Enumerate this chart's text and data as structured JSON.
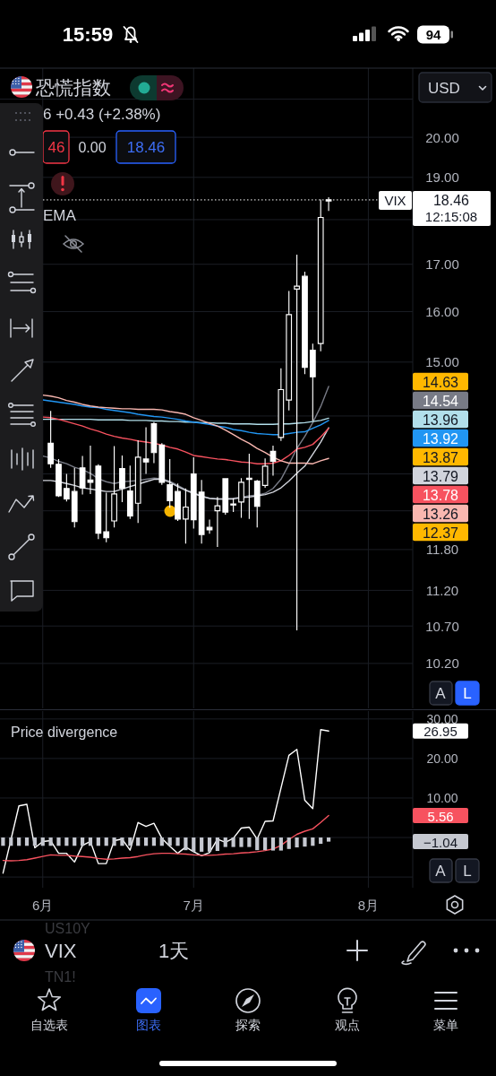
{
  "chart_data": [
    {
      "type": "candlestick",
      "title": "恐慌指数",
      "subtitle": "6 +0.43 (+2.38%)",
      "color": "#ffffff",
      "categories": [
        null,
        null,
        null,
        null,
        null,
        null,
        null,
        null,
        null,
        null,
        null,
        null,
        null,
        null,
        null,
        null,
        null,
        null,
        null,
        null,
        null,
        null,
        null,
        null,
        null,
        null,
        null,
        null,
        null,
        null,
        null,
        null,
        null,
        null,
        null,
        null,
        null,
        null,
        null,
        null,
        null,
        null,
        null,
        null,
        null,
        null,
        null
      ],
      "ohlc": [
        null,
        null,
        null,
        null,
        null,
        null,
        [
          13.52,
          14.09,
          13.1,
          13.17
        ],
        [
          13.16,
          13.25,
          12.62,
          12.64
        ],
        [
          12.76,
          13.0,
          12.55,
          12.59
        ],
        [
          12.71,
          13.1,
          12.14,
          12.23
        ],
        [
          13.1,
          13.3,
          12.66,
          12.77
        ],
        [
          12.9,
          13.48,
          12.67,
          12.86
        ],
        [
          13.13,
          13.16,
          11.96,
          12.05
        ],
        [
          12.07,
          12.69,
          11.91,
          11.98
        ],
        [
          12.24,
          13.47,
          12.14,
          12.67
        ],
        [
          13.09,
          13.31,
          12.54,
          12.76
        ],
        [
          12.72,
          13.14,
          12.27,
          12.32
        ],
        [
          12.52,
          13.57,
          12.21,
          13.28
        ],
        [
          13.25,
          13.8,
          13.0,
          13.2
        ],
        [
          13.86,
          13.89,
          13.18,
          13.36
        ],
        [
          13.49,
          13.52,
          12.82,
          12.86
        ],
        [
          12.82,
          13.25,
          12.45,
          12.56
        ],
        [
          12.71,
          12.84,
          12.24,
          12.27
        ],
        [
          12.27,
          12.76,
          11.89,
          12.46
        ],
        [
          13.0,
          13.28,
          12.12,
          12.26
        ],
        [
          12.7,
          12.9,
          11.89,
          12.03
        ],
        [
          12.14,
          12.26,
          12.04,
          12.1
        ],
        [
          12.4,
          12.62,
          11.84,
          12.48
        ],
        [
          12.92,
          12.93,
          12.34,
          12.38
        ],
        [
          12.51,
          12.6,
          12.38,
          12.5
        ],
        [
          12.54,
          12.93,
          12.29,
          12.86
        ],
        [
          12.93,
          13.34,
          12.27,
          12.91
        ],
        [
          12.88,
          12.9,
          12.14,
          12.47
        ],
        [
          12.81,
          13.26,
          12.77,
          13.13
        ],
        [
          13.38,
          13.48,
          12.97,
          13.21
        ],
        [
          13.62,
          14.88,
          13.56,
          14.48
        ],
        [
          14.29,
          16.43,
          14.1,
          15.94
        ],
        [
          16.47,
          17.21,
          10.64,
          16.53
        ],
        [
          16.74,
          16.84,
          14.77,
          14.9
        ],
        [
          15.23,
          15.36,
          13.91,
          14.72
        ],
        [
          15.36,
          18.47,
          15.21,
          18.05
        ],
        [
          18.44,
          18.52,
          18.2,
          18.46
        ],
        null,
        null,
        null,
        null,
        null
      ],
      "series": [
        {
          "type": "line",
          "color": "#787b86",
          "values": [
            null,
            null,
            null,
            null,
            null,
            13.3,
            13.27,
            13.21,
            13.17,
            13.11,
            13.07,
            13.01,
            12.92,
            12.87,
            12.84,
            12.87,
            12.88,
            12.89,
            12.91,
            12.93,
            12.92,
            12.88,
            12.81,
            12.74,
            12.69,
            12.64,
            12.6,
            12.59,
            12.59,
            12.6,
            12.62,
            12.64,
            12.65,
            12.68,
            12.76,
            12.91,
            13.16,
            13.43,
            13.64,
            13.88,
            14.17,
            14.54,
            null,
            null,
            null,
            null,
            null
          ]
        },
        {
          "type": "line",
          "color": "#b2dfeb",
          "values": [
            null,
            null,
            null,
            null,
            null,
            13.94,
            13.94,
            13.94,
            13.94,
            13.94,
            13.94,
            13.94,
            13.93,
            13.93,
            13.93,
            13.93,
            13.92,
            13.92,
            13.92,
            13.91,
            13.91,
            13.9,
            13.9,
            13.89,
            13.89,
            13.88,
            13.88,
            13.87,
            13.87,
            13.86,
            13.86,
            13.86,
            13.85,
            13.85,
            13.85,
            13.86,
            13.86,
            13.87,
            13.88,
            13.9,
            13.92,
            13.96,
            null,
            null,
            null,
            null,
            null
          ]
        },
        {
          "type": "line",
          "color": "#2196f3",
          "values": [
            null,
            null,
            null,
            null,
            null,
            14.29,
            14.27,
            14.25,
            14.23,
            14.21,
            14.18,
            14.16,
            14.15,
            14.12,
            14.1,
            14.08,
            14.06,
            14.03,
            14.01,
            13.99,
            13.98,
            13.96,
            13.94,
            13.91,
            13.89,
            13.87,
            13.85,
            13.82,
            13.8,
            13.76,
            13.74,
            13.71,
            13.69,
            13.68,
            13.67,
            13.67,
            13.69,
            13.71,
            13.72,
            13.78,
            13.84,
            13.92,
            null,
            null,
            null,
            null,
            null
          ]
        },
        {
          "type": "line",
          "color": "#d1d4dc",
          "values": [
            null,
            null,
            null,
            null,
            null,
            12.89,
            12.89,
            12.87,
            12.84,
            12.81,
            12.77,
            12.75,
            12.73,
            12.71,
            12.71,
            12.75,
            12.79,
            12.83,
            12.87,
            12.91,
            12.91,
            12.86,
            12.79,
            12.73,
            12.68,
            12.63,
            12.6,
            12.59,
            12.59,
            12.59,
            12.61,
            12.62,
            12.64,
            12.66,
            12.7,
            12.77,
            12.88,
            13.01,
            13.13,
            13.33,
            13.54,
            13.79,
            null,
            null,
            null,
            null,
            null
          ]
        },
        {
          "type": "line",
          "color": "#f7525f",
          "values": [
            null,
            null,
            null,
            null,
            null,
            13.98,
            13.97,
            13.94,
            13.9,
            13.86,
            13.82,
            13.77,
            13.73,
            13.68,
            13.64,
            13.61,
            13.59,
            13.56,
            13.54,
            13.52,
            13.49,
            13.45,
            13.42,
            13.37,
            13.31,
            13.29,
            13.27,
            13.25,
            13.24,
            13.22,
            13.2,
            13.19,
            13.17,
            13.17,
            13.18,
            13.22,
            13.31,
            13.42,
            13.45,
            13.5,
            13.63,
            13.78,
            null,
            null,
            null,
            null,
            null
          ]
        },
        {
          "type": "line",
          "color": "#f9b7b0",
          "values": [
            null,
            null,
            null,
            null,
            null,
            14.38,
            14.36,
            14.33,
            14.28,
            14.25,
            14.21,
            14.18,
            14.16,
            14.15,
            14.14,
            14.13,
            14.13,
            14.12,
            14.12,
            14.12,
            14.11,
            14.08,
            14.06,
            14.03,
            13.97,
            13.92,
            13.87,
            13.82,
            13.75,
            13.67,
            13.59,
            13.52,
            13.43,
            13.36,
            13.28,
            13.22,
            13.18,
            13.18,
            13.18,
            13.17,
            13.22,
            13.26,
            null,
            null,
            null,
            null,
            null
          ]
        }
      ],
      "log": true,
      "ylim": [
        9.63,
        21.85
      ],
      "yticks": [
        {
          "value": 10.2,
          "label": "10.20"
        },
        {
          "value": 10.7,
          "label": "10.70"
        },
        {
          "value": 11.2,
          "label": "11.20"
        },
        {
          "value": 11.8,
          "label": "11.80"
        },
        {
          "value": 12.4,
          "label": null
        },
        {
          "value": 13,
          "label": null
        },
        {
          "value": 14,
          "label": null
        },
        {
          "value": 15,
          "label": "15.00"
        },
        {
          "value": 16,
          "label": "16.00"
        },
        {
          "value": 17,
          "label": "17.00"
        },
        {
          "value": 18,
          "label": null
        },
        {
          "value": 19,
          "label": "19.00"
        },
        {
          "value": 20,
          "label": "20.00"
        },
        {
          "value": 21,
          "label": null
        }
      ],
      "grid": true,
      "tick_labels": "y",
      "ref_lines": [
        {
          "axis": "y",
          "value": 18.46,
          "label": "VIX",
          "color": "#ffffff",
          "line_style": "dotted"
        }
      ],
      "annotations": [
        "15:59",
        "94",
        "USD",
        "46",
        "0.00",
        "18.46",
        "EMA",
        "12:15:08",
        "A",
        "L",
        "14.63",
        "14.54",
        "13.96",
        "13.92",
        "13.87",
        "13.79",
        "13.78",
        "13.26",
        "12.37"
      ]
    },
    {
      "type": "line",
      "title": "Price divergence",
      "categories": [
        null,
        null,
        null,
        null,
        null,
        "6月",
        null,
        null,
        null,
        null,
        null,
        null,
        null,
        null,
        null,
        null,
        null,
        null,
        null,
        null,
        null,
        null,
        null,
        null,
        "7月",
        null,
        null,
        null,
        null,
        null,
        null,
        null,
        null,
        null,
        null,
        null,
        null,
        null,
        null,
        null,
        null,
        null,
        null,
        null,
        null,
        null,
        "8月"
      ],
      "series": [
        {
          "color": "#ffffff",
          "values": [
            -9.0,
            -0.5,
            8.0,
            8.4,
            -2.6,
            -1.0,
            -0.8,
            -4.0,
            -4.0,
            -6.2,
            -2.0,
            -1.0,
            -6.6,
            -6.6,
            -0.8,
            -0.4,
            -3.2,
            3.8,
            2.8,
            3.6,
            -0.2,
            -2.2,
            -4.0,
            -2.4,
            -3.6,
            -4.6,
            -3.8,
            -0.4,
            -1.2,
            -0.2,
            2.4,
            2.6,
            -0.4,
            4.1,
            4.2,
            12.5,
            20.8,
            22.3,
            9.4,
            7.3,
            27.3,
            26.95,
            null,
            null,
            null,
            null,
            null
          ]
        },
        {
          "color": "#f7525f",
          "values": [
            -5.8,
            -5.9,
            -5.8,
            -5.6,
            -5.2,
            -4.8,
            -4.4,
            -4.5,
            -4.5,
            -4.7,
            -4.8,
            -5.0,
            -5.3,
            -5.5,
            -5.4,
            -5.2,
            -5.1,
            -4.8,
            -4.4,
            -4.1,
            -4.0,
            -4.0,
            -4.1,
            -4.2,
            -4.4,
            -4.5,
            -4.5,
            -4.4,
            -4.2,
            -4.1,
            -3.9,
            -3.8,
            -3.6,
            -3.3,
            -2.9,
            -2.0,
            -0.5,
            0.8,
            1.6,
            2.2,
            3.8,
            5.56,
            null,
            null,
            null,
            null,
            null
          ]
        },
        {
          "type": "bar",
          "color": "#c5c8d0",
          "values": [
            -2.1,
            -2.1,
            -2.1,
            -2.1,
            -2.1,
            -2.1,
            -2.1,
            -2.1,
            -2.1,
            -2.1,
            -2.1,
            -2.1,
            -2.1,
            -2.1,
            -2.1,
            -2.1,
            -2.1,
            -2.1,
            -2.1,
            -2.1,
            -2.1,
            -2.1,
            -2.1,
            -3.2,
            -3.6,
            -3.6,
            -3.6,
            -3.4,
            -2.4,
            -2.4,
            -2.4,
            -2.4,
            -3.2,
            -3.2,
            -3.3,
            -3.3,
            -2.9,
            -2.5,
            -2.3,
            -2.1,
            -1.6,
            -1.04,
            null,
            null,
            null,
            null,
            null
          ]
        }
      ],
      "ylim": [
        -12.7,
        32
      ],
      "yticks": [
        {
          "value": -10,
          "label": null
        },
        {
          "value": 0,
          "label": null
        },
        {
          "value": 10,
          "label": "10.00"
        },
        {
          "value": 20,
          "label": "20.00"
        },
        {
          "value": 30,
          "label": "30.00"
        }
      ],
      "grid": true,
      "annotations": [
        "A",
        "L",
        "US10Y",
        "VIX",
        "TN1!",
        "1天",
        "自选表",
        "图表",
        "探索",
        "观点",
        "菜单",
        "26.95",
        "5.56",
        "−1.04"
      ]
    }
  ]
}
